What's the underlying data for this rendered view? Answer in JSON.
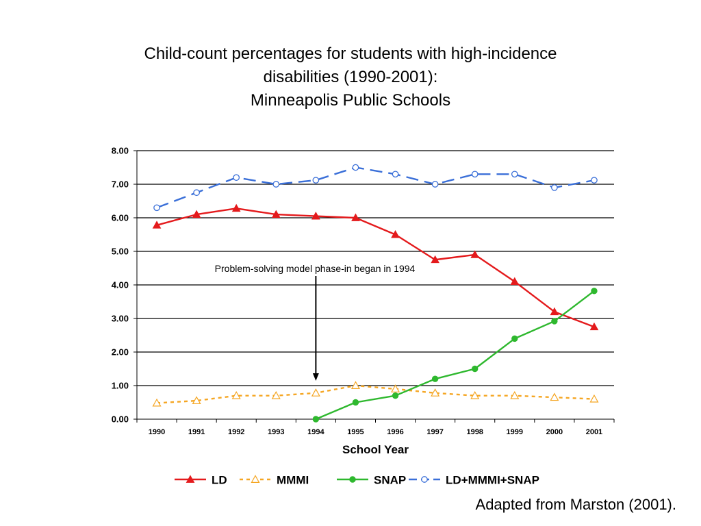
{
  "title_lines": [
    "Child-count percentages for students with high-incidence",
    "disabilities (1990-2001):",
    "Minneapolis Public Schools"
  ],
  "source_note": "Adapted from Marston (2001).",
  "chart_data": {
    "type": "line",
    "xlabel": "School Year",
    "ylabel": "",
    "ylim": [
      0,
      8
    ],
    "yticks": [
      "0.00",
      "1.00",
      "2.00",
      "3.00",
      "4.00",
      "5.00",
      "6.00",
      "7.00",
      "8.00"
    ],
    "categories": [
      "1990",
      "1991",
      "1992",
      "1993",
      "1994",
      "1995",
      "1996",
      "1997",
      "1998",
      "1999",
      "2000",
      "2001"
    ],
    "grid": "horizontal",
    "legend_position": "bottom",
    "series": [
      {
        "name": "LD",
        "color": "#e41a1c",
        "dash": "solid",
        "marker": "triangle-filled",
        "values": [
          5.78,
          6.1,
          6.28,
          6.1,
          6.05,
          6.0,
          5.5,
          4.75,
          4.9,
          4.1,
          3.2,
          2.75
        ]
      },
      {
        "name": "MMMI",
        "color": "#f5a623",
        "dash": "dotted",
        "marker": "triangle-open",
        "values": [
          0.48,
          0.55,
          0.7,
          0.7,
          0.78,
          1.0,
          0.9,
          0.78,
          0.7,
          0.7,
          0.65,
          0.6
        ]
      },
      {
        "name": "SNAP",
        "color": "#2eb82e",
        "dash": "solid",
        "marker": "circle-filled",
        "values": [
          null,
          null,
          null,
          null,
          0.0,
          0.5,
          0.7,
          1.2,
          1.5,
          2.4,
          2.92,
          3.82
        ]
      },
      {
        "name": "LD+MMMI+SNAP",
        "color": "#3a6fd8",
        "dash": "dashed",
        "marker": "circle-open",
        "values": [
          6.3,
          6.75,
          7.2,
          7.0,
          7.12,
          7.5,
          7.3,
          7.0,
          7.3,
          7.3,
          6.9,
          7.12
        ]
      }
    ],
    "annotation": {
      "text": "Problem-solving model phase-in began in 1994",
      "points_to": "1994"
    }
  }
}
